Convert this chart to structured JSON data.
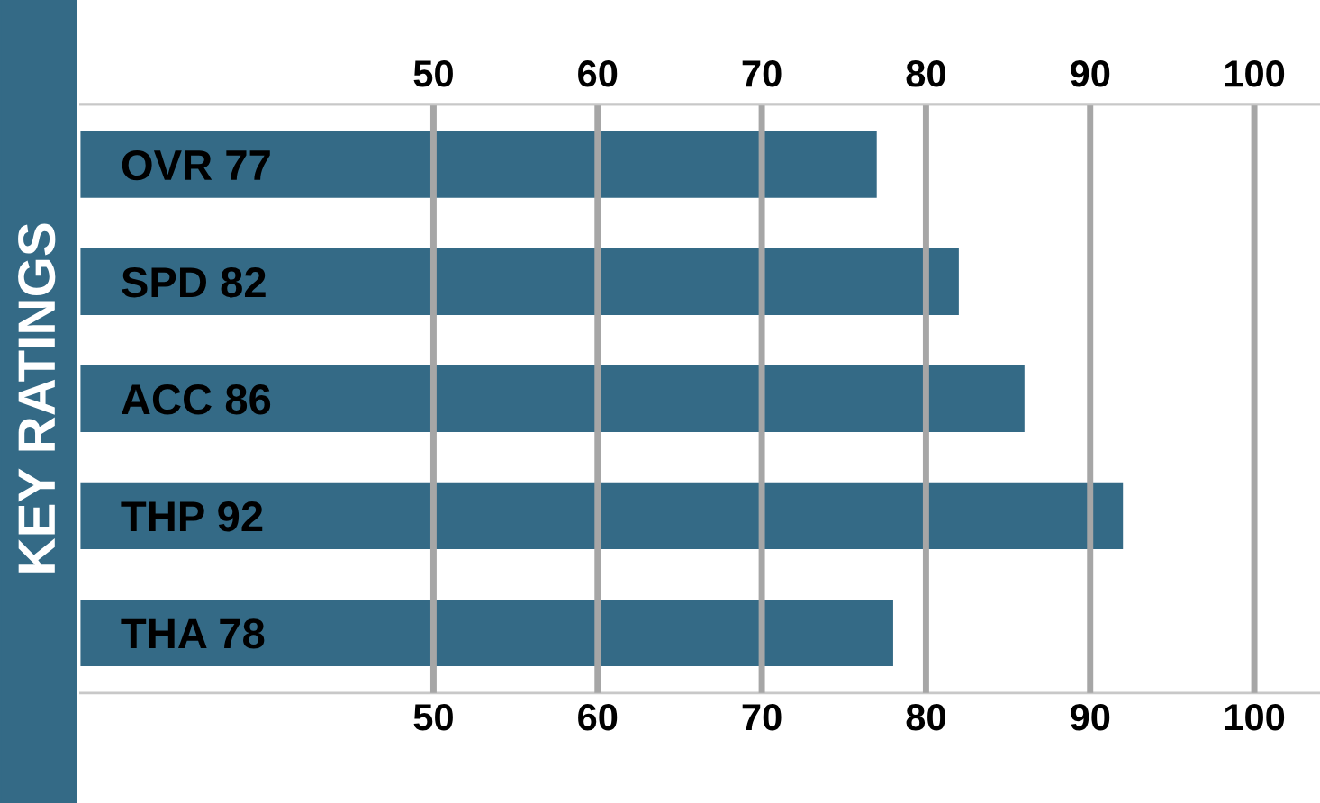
{
  "chart_data": {
    "type": "bar",
    "orientation": "horizontal",
    "ylabel": "KEY RATINGS",
    "categories": [
      "OVR 77",
      "SPD 82",
      "ACC 86",
      "THP 92",
      "THA 78"
    ],
    "values": [
      77,
      82,
      86,
      92,
      78
    ],
    "color": "#346a86",
    "xlim": [
      28.5,
      104
    ],
    "xticks": [
      50,
      60,
      70,
      80,
      90,
      100
    ],
    "x2lim": [
      28.5,
      104
    ],
    "x2ticks": [
      50,
      60,
      70,
      80,
      90,
      100
    ],
    "grid": "x"
  }
}
